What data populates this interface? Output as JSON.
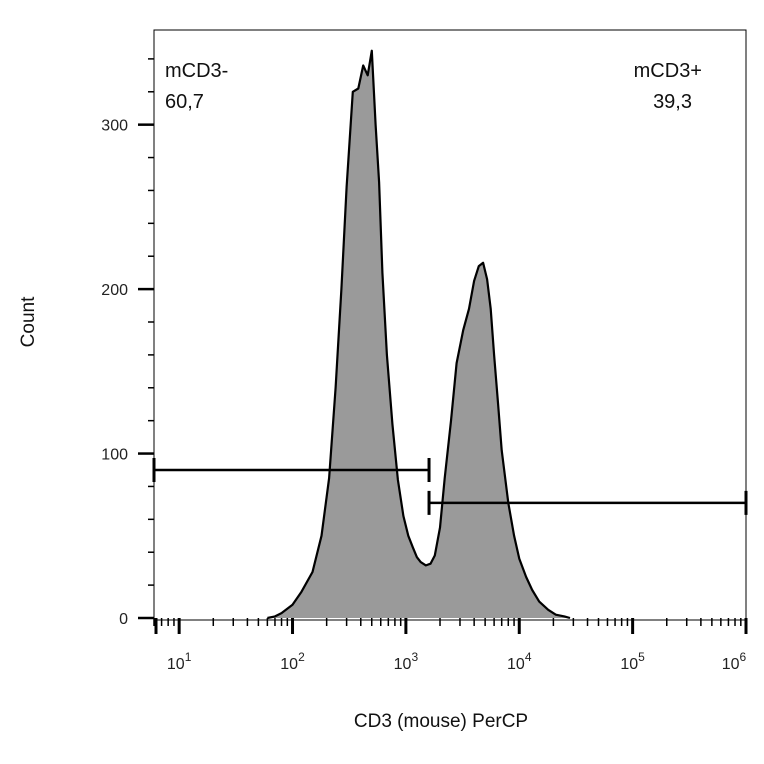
{
  "chart_data": {
    "type": "histogram",
    "xlabel": "CD3 (mouse) PerCP",
    "ylabel": "Count",
    "x_scale": "log",
    "xlim": [
      6,
      1000000
    ],
    "ylim": [
      0,
      360
    ],
    "y_ticks": [
      0,
      100,
      200,
      300
    ],
    "x_ticks": [
      {
        "value": 10,
        "base": "10",
        "exp": "1"
      },
      {
        "value": 100,
        "base": "10",
        "exp": "2"
      },
      {
        "value": 1000,
        "base": "10",
        "exp": "3"
      },
      {
        "value": 10000,
        "base": "10",
        "exp": "4"
      },
      {
        "value": 100000,
        "base": "10",
        "exp": "5"
      },
      {
        "value": 1000000,
        "base": "10",
        "exp": "6"
      }
    ],
    "fill_color": "#9a9a9a",
    "line_color": "#000000",
    "series": [
      {
        "x": [
          60,
          70,
          80,
          100,
          120,
          150,
          180,
          210,
          240,
          270,
          300,
          340,
          380,
          420,
          460,
          500,
          540,
          580,
          620,
          680,
          760,
          850,
          950,
          1050,
          1150,
          1250,
          1350,
          1500,
          1650,
          1800,
          2000,
          2200,
          2500,
          2800,
          3200,
          3600,
          4000,
          4400,
          4800,
          5200,
          5600,
          6000,
          6500,
          7000,
          8000,
          9000,
          10000,
          11500,
          13000,
          15000,
          18000,
          21000,
          25000,
          28000
        ],
        "y": [
          0,
          1,
          3,
          8,
          16,
          28,
          50,
          85,
          140,
          200,
          262,
          320,
          322,
          336,
          330,
          345,
          300,
          265,
          210,
          160,
          118,
          84,
          62,
          50,
          43,
          37,
          34,
          32,
          33,
          38,
          55,
          85,
          120,
          155,
          175,
          188,
          205,
          214,
          216,
          206,
          188,
          160,
          130,
          102,
          70,
          50,
          36,
          25,
          17,
          10,
          5,
          2,
          1,
          0
        ]
      }
    ],
    "gates": [
      {
        "name": "mCD3-",
        "percent": "60,7",
        "x_start": 6,
        "x_end": 1600,
        "y": 90
      },
      {
        "name": "mCD3+",
        "percent": "39,3",
        "x_start": 1600,
        "x_end": 1000000,
        "y": 70
      }
    ]
  }
}
